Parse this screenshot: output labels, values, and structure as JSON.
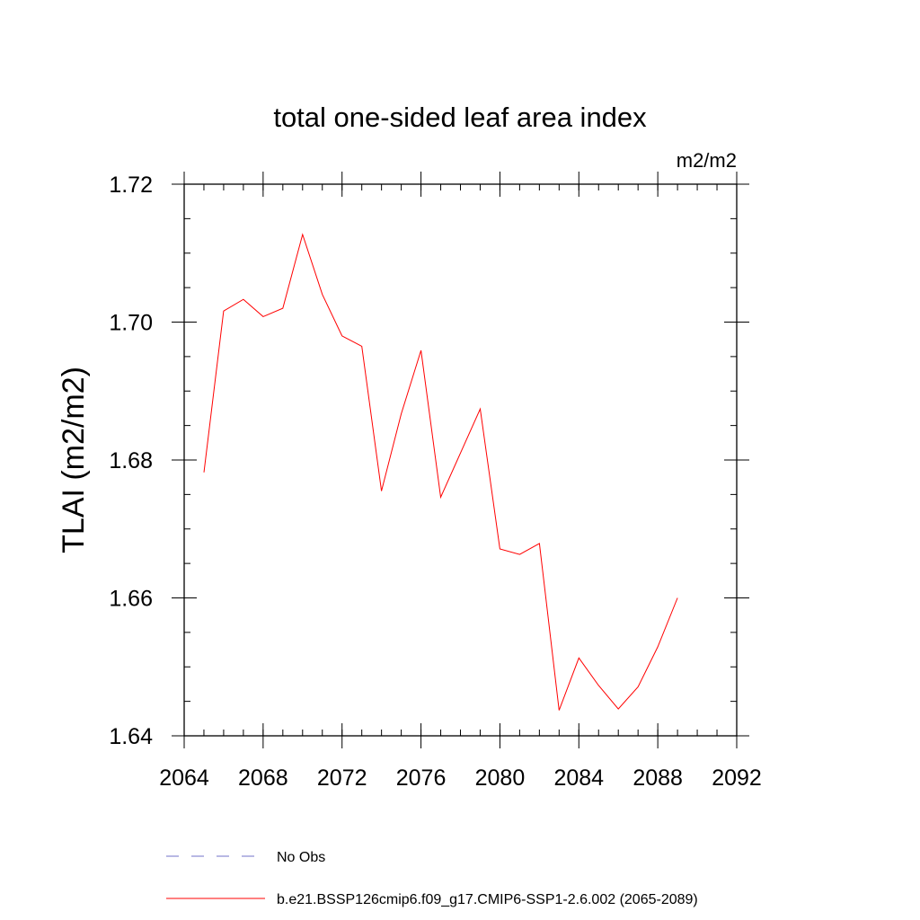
{
  "chart_data": {
    "type": "line",
    "title": "total one-sided leaf area index",
    "units": "m2/m2",
    "xlabel": "",
    "ylabel": "TLAI  (m2/m2)",
    "xlim": [
      2064,
      2092
    ],
    "ylim": [
      1.64,
      1.72
    ],
    "x_ticks": [
      2064,
      2068,
      2072,
      2076,
      2080,
      2084,
      2088,
      2092
    ],
    "x_tick_labels": [
      "2064",
      "2068",
      "2072",
      "2076",
      "2080",
      "2084",
      "2088",
      "2092"
    ],
    "x_minor_step": 1,
    "y_ticks": [
      1.64,
      1.66,
      1.68,
      1.7,
      1.72
    ],
    "y_tick_labels": [
      "1.64",
      "1.66",
      "1.68",
      "1.70",
      "1.72"
    ],
    "y_minor_step": 0.005,
    "grid": false,
    "series": [
      {
        "name": "b.e21.BSSP126cmip6.f09_g17.CMIP6-SSP1-2.6.002 (2065-2089)",
        "color": "#ff0000",
        "style": "solid",
        "x": [
          2065,
          2066,
          2067,
          2068,
          2069,
          2070,
          2071,
          2072,
          2073,
          2074,
          2075,
          2076,
          2077,
          2078,
          2079,
          2080,
          2081,
          2082,
          2083,
          2084,
          2085,
          2086,
          2087,
          2088,
          2089
        ],
        "values": [
          1.6782,
          1.7016,
          1.7033,
          1.7008,
          1.702,
          1.7127,
          1.704,
          1.698,
          1.6965,
          1.6755,
          1.6867,
          1.6959,
          1.6746,
          1.681,
          1.6874,
          1.6671,
          1.6663,
          1.6679,
          1.6437,
          1.6513,
          1.6473,
          1.6439,
          1.6471,
          1.6529,
          1.66
        ]
      }
    ],
    "legend": [
      {
        "label": "No Obs",
        "color": "#7070c8",
        "style": "dashed"
      },
      {
        "label": "b.e21.BSSP126cmip6.f09_g17.CMIP6-SSP1-2.6.002 (2065-2089)",
        "color": "#ff0000",
        "style": "solid"
      }
    ],
    "legend_position": "bottom"
  }
}
